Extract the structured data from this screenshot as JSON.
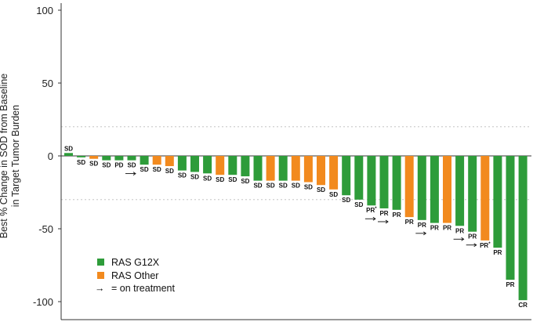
{
  "chart_data": {
    "type": "bar",
    "ylabel": "Best % Change in SOD from Baseline",
    "ylabel_line2": "in Target Tumor Burden",
    "ylim": [
      -105,
      100
    ],
    "yticks": [
      100,
      50,
      0,
      -50,
      -100
    ],
    "reference_lines": [
      20,
      -30
    ],
    "colors": {
      "RAS G12X": "#2e9c3a",
      "RAS Other": "#f28a1e"
    },
    "legend": [
      {
        "name": "RAS G12X",
        "color": "#2e9c3a"
      },
      {
        "name": "RAS Other",
        "color": "#f28a1e"
      },
      {
        "name": "= on treatment",
        "symbol": "→"
      }
    ],
    "legend_position": "bottom-left",
    "bars": [
      {
        "value": 2,
        "group": "RAS G12X",
        "label": "SD",
        "on_treatment": false
      },
      {
        "value": -1,
        "group": "RAS G12X",
        "label": "SD",
        "on_treatment": false
      },
      {
        "value": -2,
        "group": "RAS Other",
        "label": "SD",
        "on_treatment": false
      },
      {
        "value": -3,
        "group": "RAS G12X",
        "label": "SD",
        "on_treatment": false
      },
      {
        "value": -3,
        "group": "RAS G12X",
        "label": "PD",
        "on_treatment": false
      },
      {
        "value": -3,
        "group": "RAS G12X",
        "label": "SD",
        "on_treatment": true
      },
      {
        "value": -6,
        "group": "RAS G12X",
        "label": "SD",
        "on_treatment": false
      },
      {
        "value": -6,
        "group": "RAS Other",
        "label": "SD",
        "on_treatment": false
      },
      {
        "value": -7,
        "group": "RAS Other",
        "label": "SD",
        "on_treatment": false
      },
      {
        "value": -10,
        "group": "RAS G12X",
        "label": "SD",
        "on_treatment": false
      },
      {
        "value": -11,
        "group": "RAS G12X",
        "label": "SD",
        "on_treatment": false
      },
      {
        "value": -12,
        "group": "RAS G12X",
        "label": "SD",
        "on_treatment": false
      },
      {
        "value": -13,
        "group": "RAS Other",
        "label": "SD",
        "on_treatment": false
      },
      {
        "value": -13,
        "group": "RAS G12X",
        "label": "SD",
        "on_treatment": false
      },
      {
        "value": -14,
        "group": "RAS G12X",
        "label": "SD",
        "on_treatment": false
      },
      {
        "value": -17,
        "group": "RAS G12X",
        "label": "SD",
        "on_treatment": false
      },
      {
        "value": -17,
        "group": "RAS Other",
        "label": "SD",
        "on_treatment": false
      },
      {
        "value": -17,
        "group": "RAS G12X",
        "label": "SD",
        "on_treatment": false
      },
      {
        "value": -17,
        "group": "RAS Other",
        "label": "SD",
        "on_treatment": false
      },
      {
        "value": -18,
        "group": "RAS Other",
        "label": "SD",
        "on_treatment": false
      },
      {
        "value": -20,
        "group": "RAS Other",
        "label": "SD",
        "on_treatment": false
      },
      {
        "value": -23,
        "group": "RAS Other",
        "label": "SD",
        "on_treatment": false
      },
      {
        "value": -27,
        "group": "RAS G12X",
        "label": "SD",
        "on_treatment": false
      },
      {
        "value": -30,
        "group": "RAS G12X",
        "label": "SD",
        "on_treatment": false
      },
      {
        "value": -34,
        "group": "RAS G12X",
        "label": "PR*",
        "on_treatment": true
      },
      {
        "value": -36,
        "group": "RAS G12X",
        "label": "PR",
        "on_treatment": true
      },
      {
        "value": -37,
        "group": "RAS G12X",
        "label": "PR",
        "on_treatment": false
      },
      {
        "value": -42,
        "group": "RAS Other",
        "label": "PR",
        "on_treatment": false
      },
      {
        "value": -44,
        "group": "RAS G12X",
        "label": "PR",
        "on_treatment": true
      },
      {
        "value": -46,
        "group": "RAS G12X",
        "label": "PR",
        "on_treatment": false
      },
      {
        "value": -46,
        "group": "RAS Other",
        "label": "PR",
        "on_treatment": false
      },
      {
        "value": -48,
        "group": "RAS G12X",
        "label": "PR",
        "on_treatment": true
      },
      {
        "value": -52,
        "group": "RAS G12X",
        "label": "PR",
        "on_treatment": true
      },
      {
        "value": -58,
        "group": "RAS Other",
        "label": "PR*",
        "on_treatment": false
      },
      {
        "value": -63,
        "group": "RAS G12X",
        "label": "PR",
        "on_treatment": false
      },
      {
        "value": -85,
        "group": "RAS G12X",
        "label": "PR",
        "on_treatment": false
      },
      {
        "value": -99,
        "group": "RAS G12X",
        "label": "CR",
        "on_treatment": false
      }
    ]
  }
}
